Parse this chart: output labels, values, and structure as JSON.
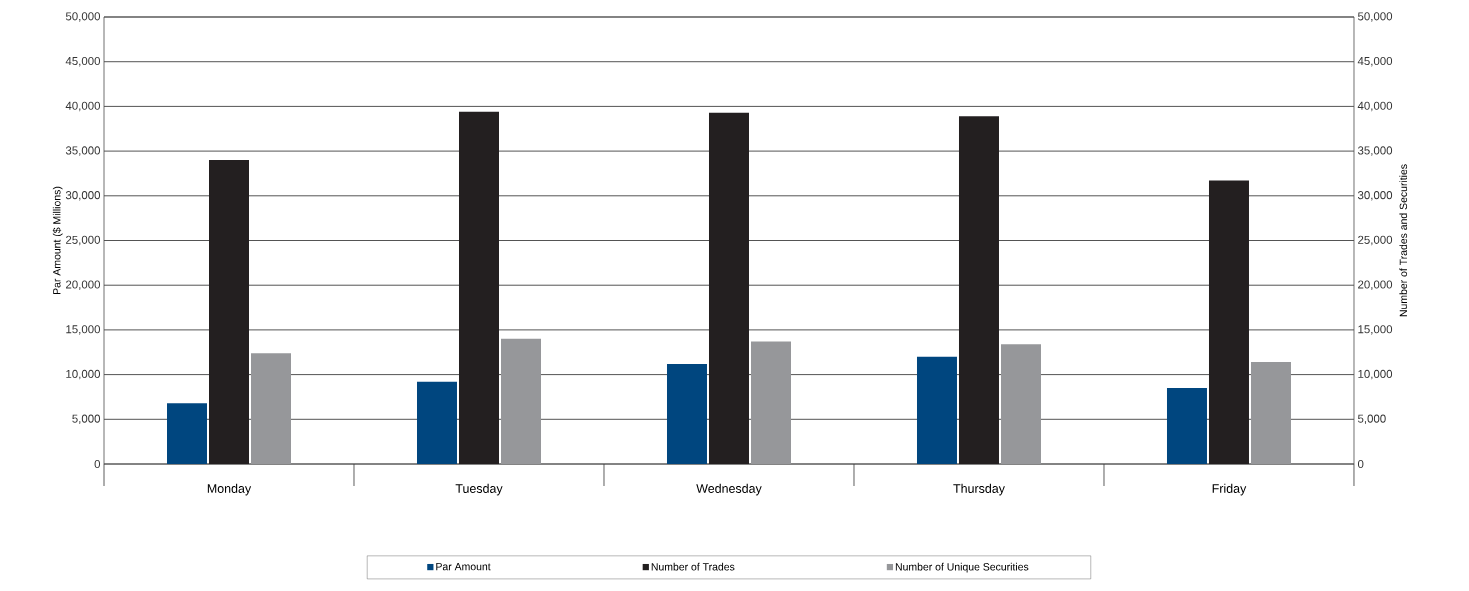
{
  "chart_data": {
    "type": "bar",
    "ylabel": "Par Amount ($ Millions)",
    "y2label": "Number of Trades and Securities",
    "categories": [
      "Monday",
      "Tuesday",
      "Wednesday",
      "Thursday",
      "Friday"
    ],
    "series": [
      {
        "name": "Par Amount",
        "color": "#00467f",
        "values": [
          6800,
          9200,
          11200,
          12000,
          8500
        ]
      },
      {
        "name": "Number of Trades",
        "color": "#231f20",
        "axis": "y2",
        "values": [
          34000,
          39400,
          39300,
          38900,
          31700
        ]
      },
      {
        "name": "Number of Unique Securities",
        "color": "#96979a",
        "axis": "y2",
        "values": [
          12400,
          14000,
          13700,
          13400,
          11400
        ]
      }
    ],
    "ylim": [
      0,
      50000
    ],
    "yticks": [
      {
        "value": 0,
        "label": "0"
      },
      {
        "value": 5000,
        "label": "5,000"
      },
      {
        "value": 10000,
        "label": "10,000"
      },
      {
        "value": 15000,
        "label": "15,000"
      },
      {
        "value": 20000,
        "label": "20,000"
      },
      {
        "value": 25000,
        "label": "25,000"
      },
      {
        "value": 30000,
        "label": "30,000"
      },
      {
        "value": 35000,
        "label": "35,000"
      },
      {
        "value": 40000,
        "label": "40,000"
      },
      {
        "value": 45000,
        "label": "45,000"
      },
      {
        "value": 50000,
        "label": "50,000"
      }
    ],
    "y2lim": [
      0,
      50000
    ],
    "y2ticks": [
      {
        "value": 0,
        "label": "0"
      },
      {
        "value": 5000,
        "label": "5,000"
      },
      {
        "value": 10000,
        "label": "10,000"
      },
      {
        "value": 15000,
        "label": "15,000"
      },
      {
        "value": 20000,
        "label": "20,000"
      },
      {
        "value": 25000,
        "label": "25,000"
      },
      {
        "value": 30000,
        "label": "30,000"
      },
      {
        "value": 35000,
        "label": "35,000"
      },
      {
        "value": 40000,
        "label": "40,000"
      },
      {
        "value": 45000,
        "label": "45,000"
      },
      {
        "value": 50000,
        "label": "50,000"
      }
    ],
    "grid": "y",
    "legend": "bottom"
  }
}
